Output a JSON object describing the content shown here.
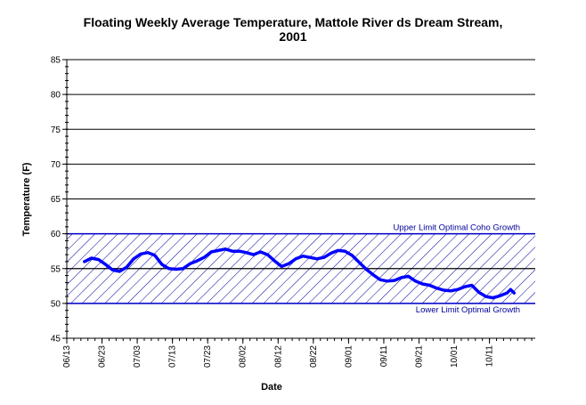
{
  "chart_data": {
    "type": "line",
    "title_line1": "Floating Weekly Average Temperature, Mattole River ds Dream Stream,",
    "title_line2": "2001",
    "xlabel": "Date",
    "ylabel": "Temperature (F)",
    "ylim": [
      45,
      85
    ],
    "yticks": [
      45,
      50,
      55,
      60,
      65,
      70,
      75,
      80,
      85
    ],
    "ytick_labels": [
      "45",
      "50",
      "55",
      "60",
      "65",
      "70",
      "75",
      "80",
      "85"
    ],
    "xlim": [
      "2001-06-13",
      "2001-10-24"
    ],
    "xticks": [
      "2001-06-13",
      "2001-06-23",
      "2001-07-03",
      "2001-07-13",
      "2001-07-23",
      "2001-08-02",
      "2001-08-12",
      "2001-08-22",
      "2001-09-01",
      "2001-09-11",
      "2001-09-21",
      "2001-10-01",
      "2001-10-11"
    ],
    "xtick_labels": [
      "06/13",
      "06/23",
      "07/03",
      "07/13",
      "07/23",
      "08/02",
      "08/12",
      "08/22",
      "09/01",
      "09/11",
      "09/21",
      "10/01",
      "10/11"
    ],
    "grid": "horizontal",
    "band": {
      "lower": 50,
      "upper": 60,
      "mid": 55,
      "upper_label": "Upper Limit Optimal Coho Growth",
      "lower_label": "Lower Limit Optimal Growth",
      "color": "#000099"
    },
    "series": [
      {
        "color": "#0000ff",
        "points": [
          [
            "2001-06-18",
            56.0
          ],
          [
            "2001-06-20",
            56.5
          ],
          [
            "2001-06-22",
            56.3
          ],
          [
            "2001-06-24",
            55.6
          ],
          [
            "2001-06-26",
            54.8
          ],
          [
            "2001-06-28",
            54.6
          ],
          [
            "2001-06-30",
            55.2
          ],
          [
            "2001-07-02",
            56.4
          ],
          [
            "2001-07-04",
            57.1
          ],
          [
            "2001-07-06",
            57.3
          ],
          [
            "2001-07-08",
            56.9
          ],
          [
            "2001-07-10",
            55.6
          ],
          [
            "2001-07-12",
            55.0
          ],
          [
            "2001-07-14",
            54.9
          ],
          [
            "2001-07-16",
            55.0
          ],
          [
            "2001-07-18",
            55.7
          ],
          [
            "2001-07-20",
            56.1
          ],
          [
            "2001-07-22",
            56.6
          ],
          [
            "2001-07-24",
            57.4
          ],
          [
            "2001-07-26",
            57.6
          ],
          [
            "2001-07-28",
            57.8
          ],
          [
            "2001-07-30",
            57.5
          ],
          [
            "2001-08-01",
            57.5
          ],
          [
            "2001-08-03",
            57.3
          ],
          [
            "2001-08-05",
            57.0
          ],
          [
            "2001-08-07",
            57.4
          ],
          [
            "2001-08-09",
            57.0
          ],
          [
            "2001-08-11",
            56.1
          ],
          [
            "2001-08-13",
            55.3
          ],
          [
            "2001-08-15",
            55.7
          ],
          [
            "2001-08-17",
            56.4
          ],
          [
            "2001-08-19",
            56.8
          ],
          [
            "2001-08-21",
            56.6
          ],
          [
            "2001-08-23",
            56.4
          ],
          [
            "2001-08-25",
            56.6
          ],
          [
            "2001-08-27",
            57.2
          ],
          [
            "2001-08-29",
            57.6
          ],
          [
            "2001-08-31",
            57.5
          ],
          [
            "2001-09-02",
            56.9
          ],
          [
            "2001-09-04",
            55.9
          ],
          [
            "2001-09-06",
            54.9
          ],
          [
            "2001-09-08",
            54.1
          ],
          [
            "2001-09-10",
            53.4
          ],
          [
            "2001-09-12",
            53.2
          ],
          [
            "2001-09-14",
            53.3
          ],
          [
            "2001-09-16",
            53.7
          ],
          [
            "2001-09-18",
            53.9
          ],
          [
            "2001-09-20",
            53.2
          ],
          [
            "2001-09-22",
            52.8
          ],
          [
            "2001-09-24",
            52.6
          ],
          [
            "2001-09-26",
            52.2
          ],
          [
            "2001-09-28",
            51.9
          ],
          [
            "2001-09-30",
            51.8
          ],
          [
            "2001-10-02",
            52.0
          ],
          [
            "2001-10-04",
            52.4
          ],
          [
            "2001-10-06",
            52.6
          ],
          [
            "2001-10-08",
            51.6
          ],
          [
            "2001-10-10",
            51.0
          ],
          [
            "2001-10-12",
            50.8
          ],
          [
            "2001-10-14",
            51.1
          ],
          [
            "2001-10-16",
            51.5
          ],
          [
            "2001-10-17",
            52.0
          ],
          [
            "2001-10-18",
            51.5
          ]
        ]
      }
    ]
  }
}
